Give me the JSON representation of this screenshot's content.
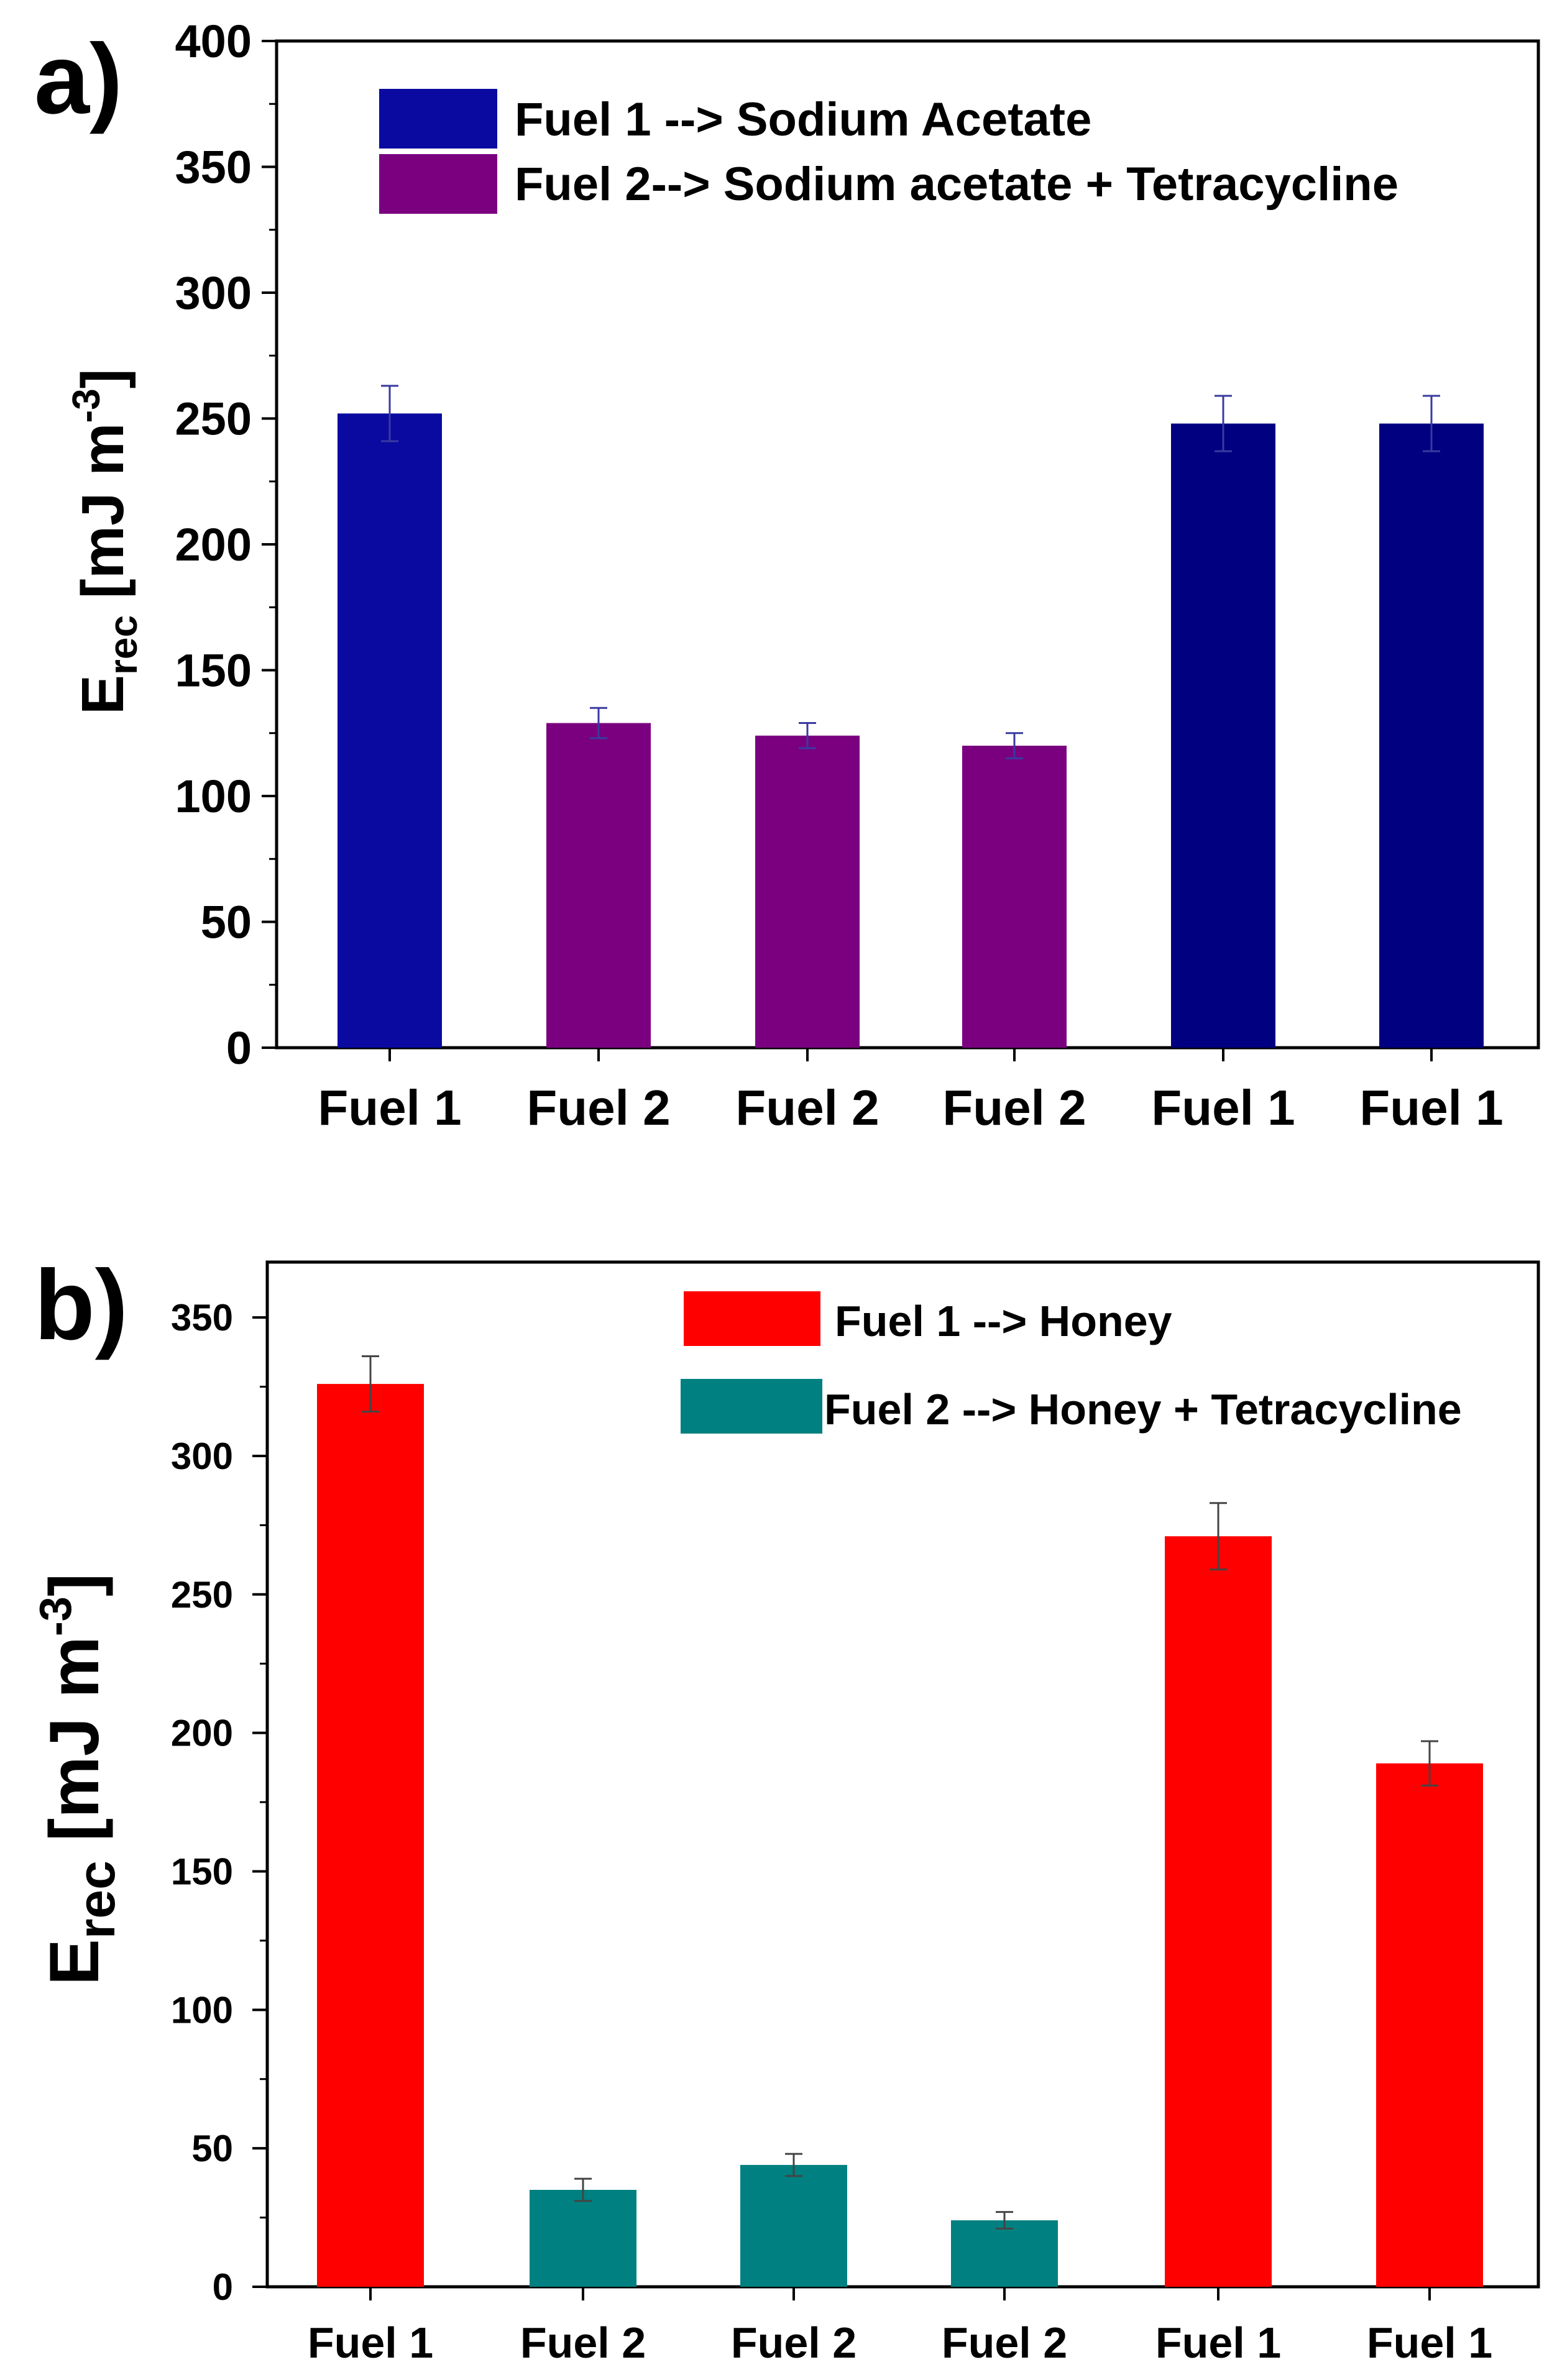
{
  "chart_data": [
    {
      "panel_label": "a)",
      "type": "bar",
      "categories": [
        "Fuel 1",
        "Fuel 2",
        "Fuel 2",
        "Fuel 2",
        "Fuel 1",
        "Fuel 1"
      ],
      "values": [
        252,
        129,
        124,
        120,
        248,
        248
      ],
      "errors": [
        11,
        6,
        5,
        5,
        11,
        11
      ],
      "fuels": [
        1,
        2,
        2,
        2,
        1,
        1
      ],
      "bar_colors": [
        "#0a0aa0",
        "#7a0080",
        "#7a0080",
        "#7a0080",
        "#000080",
        "#000080"
      ],
      "ylabel_main": "E",
      "ylabel_sub": "rec",
      "ylabel_unit": " [mJ m",
      "ylabel_sup": "-3",
      "ylabel_close": "]",
      "ylim": [
        0,
        400
      ],
      "yticks": [
        "0",
        "50",
        "100",
        "150",
        "200",
        "250",
        "300",
        "350",
        "400"
      ],
      "legend": [
        {
          "label": "Fuel 1 --> Sodium Acetate",
          "color": "#0a0aa0"
        },
        {
          "label": "Fuel 2--> Sodium acetate + Tetracycline",
          "color": "#7a0080"
        }
      ],
      "errorbar_color": "#3a3aa0"
    },
    {
      "panel_label": "b)",
      "type": "bar",
      "categories": [
        "Fuel 1",
        "Fuel 2",
        "Fuel 2",
        "Fuel 2",
        "Fuel 1",
        "Fuel 1"
      ],
      "values": [
        326,
        35,
        44,
        24,
        271,
        189
      ],
      "errors": [
        10,
        4,
        4,
        3,
        12,
        8
      ],
      "fuels": [
        1,
        2,
        2,
        2,
        1,
        1
      ],
      "bar_colors": [
        "#ff0000",
        "#008080",
        "#008080",
        "#008080",
        "#ff0000",
        "#ff0000"
      ],
      "ylabel_main": "E",
      "ylabel_sub": "rec",
      "ylabel_unit": " [mJ m",
      "ylabel_sup": "-3",
      "ylabel_close": "]",
      "ylim": [
        0,
        370
      ],
      "yticks": [
        "0",
        "50",
        "100",
        "150",
        "200",
        "250",
        "300",
        "350"
      ],
      "legend": [
        {
          "label": "Fuel 1 --> Honey",
          "color": "#ff0000"
        },
        {
          "label": "Fuel 2 --> Honey + Tetracycline",
          "color": "#008080"
        }
      ],
      "errorbar_color": "#444444"
    }
  ]
}
